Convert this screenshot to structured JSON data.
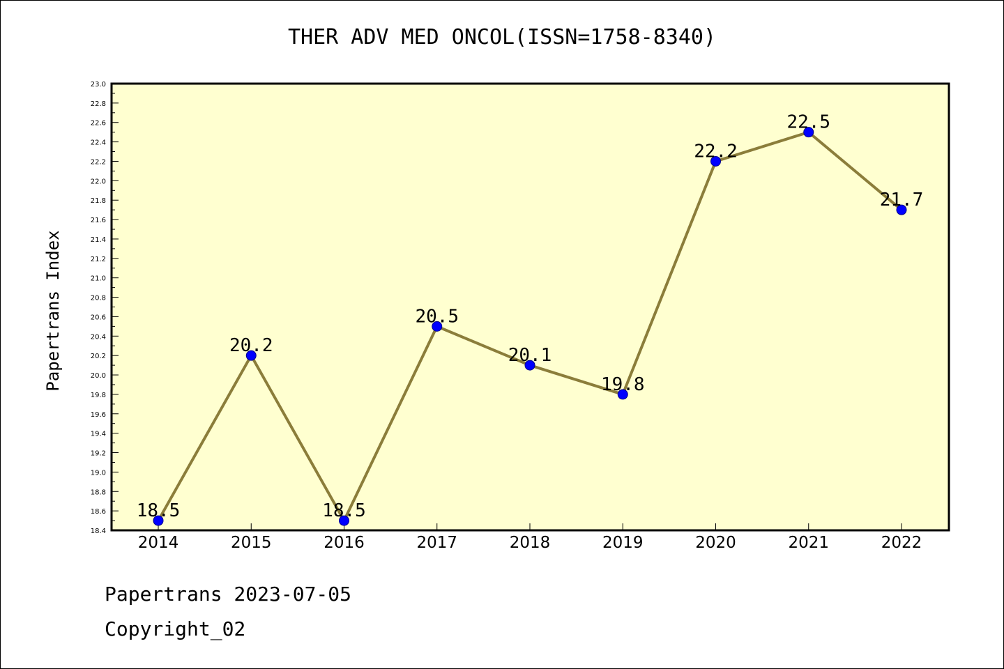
{
  "chart_data": {
    "type": "line",
    "title": "THER ADV MED ONCOL(ISSN=1758-8340)",
    "xlabel": "",
    "ylabel": "Papertrans Index",
    "categories": [
      "2014",
      "2015",
      "2016",
      "2017",
      "2018",
      "2019",
      "2020",
      "2021",
      "2022"
    ],
    "series": [
      {
        "values": [
          18.5,
          20.2,
          18.5,
          20.5,
          20.1,
          19.8,
          22.2,
          22.5,
          21.7
        ]
      }
    ],
    "data_labels": [
      "18.5",
      "20.2",
      "18.5",
      "20.5",
      "20.1",
      "19.8",
      "22.2",
      "22.5",
      "21.7"
    ],
    "ylim": [
      18.4,
      23.0
    ],
    "yticks": [
      "18.4",
      "18.6",
      "18.8",
      "19.0",
      "19.2",
      "19.4",
      "19.6",
      "19.8",
      "20.0",
      "20.2",
      "20.4",
      "20.6",
      "20.8",
      "21.0",
      "21.2",
      "21.4",
      "21.6",
      "21.8",
      "22.0",
      "22.2",
      "22.4",
      "22.6",
      "22.8",
      "23.0"
    ],
    "grid": false,
    "colors": {
      "plot_background": "#ffffd0",
      "line": "#8b7d3a",
      "marker": "#0000ff"
    }
  },
  "footer": {
    "date_text": "Papertrans 2023-07-05",
    "copyright_text": "Copyright_02"
  }
}
